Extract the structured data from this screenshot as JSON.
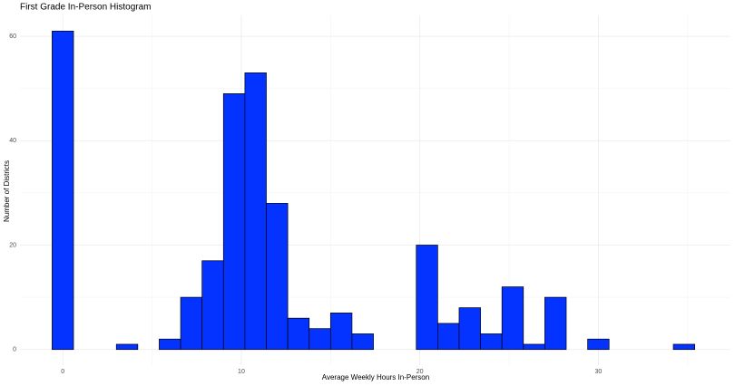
{
  "chart_data": {
    "type": "histogram",
    "title": "First Grade In-Person Histogram",
    "x_label": "Average Weekly Hours In-Person",
    "y_label": "Number of Districts",
    "bins": [
      -0.6,
      0.6,
      1.8,
      3,
      4.2,
      5.4,
      6.6,
      7.8,
      9,
      10.2,
      11.4,
      12.6,
      13.8,
      15,
      16.2,
      17.4,
      18.6,
      19.8,
      21,
      22.2,
      23.4,
      24.6,
      25.8,
      27,
      28.2,
      29.4,
      30.6,
      31.8,
      33,
      34.2,
      35.4
    ],
    "values": [
      61,
      0,
      0,
      1,
      0,
      2,
      10,
      17,
      49,
      53,
      28,
      6,
      4,
      7,
      3,
      0,
      0,
      20,
      5,
      8,
      3,
      12,
      1,
      10,
      0,
      2,
      0,
      0,
      0,
      1
    ],
    "color": "#0433ff",
    "xlim": [
      -2.4,
      37.4
    ],
    "ylim": [
      -3,
      64
    ],
    "xticks": [
      0,
      10,
      20,
      30
    ],
    "yticks": [
      0,
      20,
      40,
      60
    ],
    "xminor": [
      5,
      15,
      25,
      35
    ],
    "yminor": [
      10,
      30,
      50
    ],
    "grid": true
  }
}
